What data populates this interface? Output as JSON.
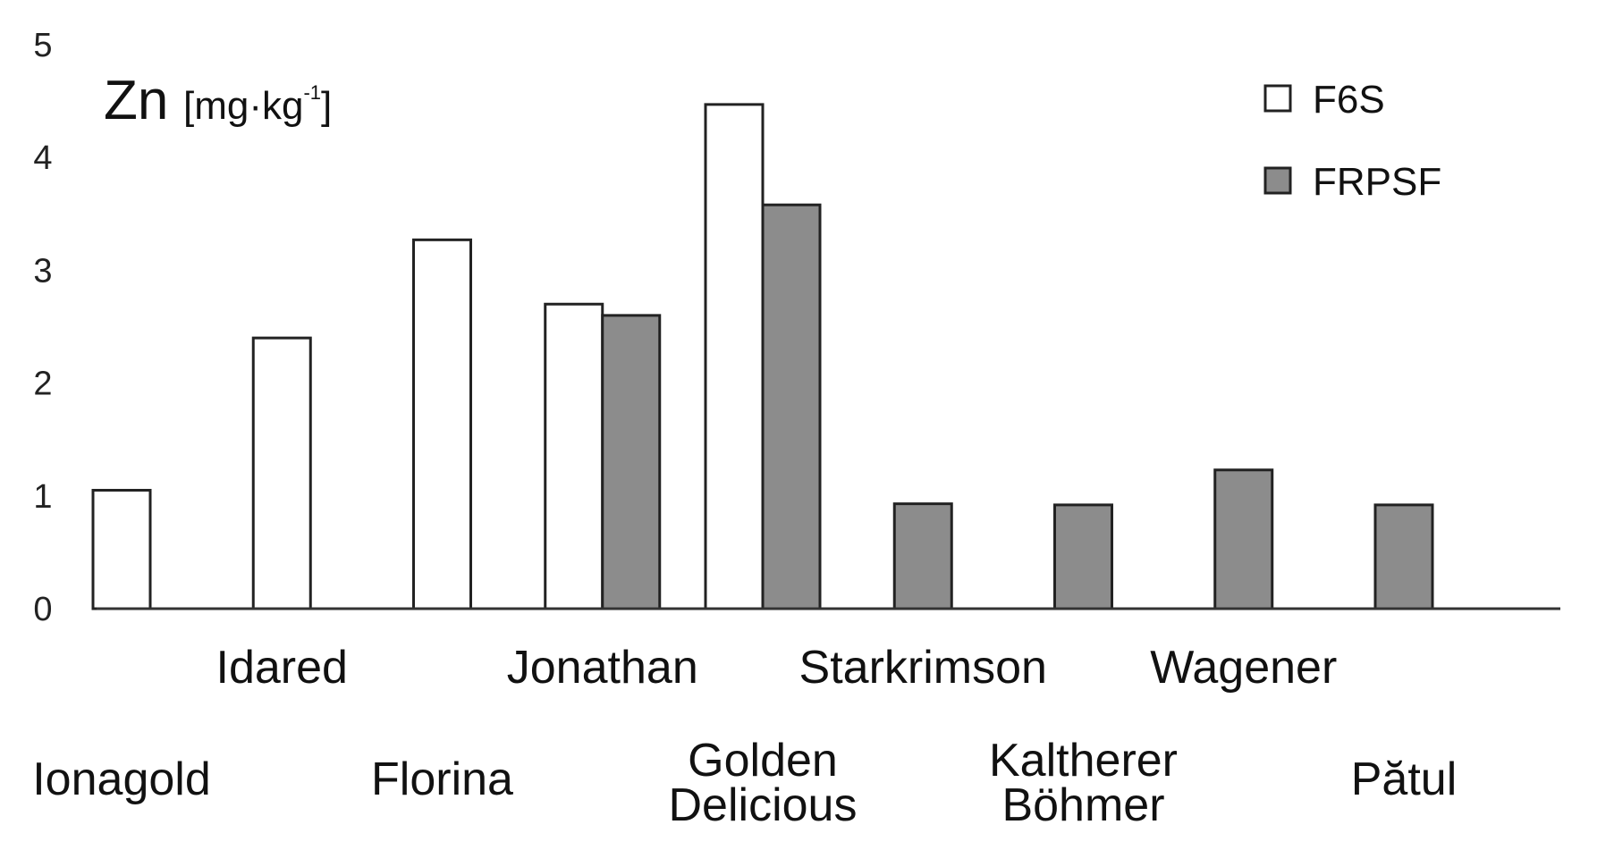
{
  "chart_data": {
    "type": "bar",
    "ylabel": {
      "symbol": "Zn",
      "unit_open": "[mg·kg",
      "unit_sup": "-1",
      "unit_close": "]"
    },
    "ylim": [
      0,
      5
    ],
    "yticks": [
      "0",
      "1",
      "2",
      "3",
      "4",
      "5"
    ],
    "grid": false,
    "legend_position": "top-right",
    "categories": [
      "Ionagold",
      "Idared",
      "Florina",
      "Jonathan",
      "Golden Delicious",
      "Starkrimson",
      "Kaltherer Böhmer",
      "Wagener",
      "Pătul"
    ],
    "category_label_lines": [
      [
        "Ionagold"
      ],
      [
        "Idared"
      ],
      [
        "Florina"
      ],
      [
        "Jonathan"
      ],
      [
        "Golden",
        "Delicious"
      ],
      [
        "Starkrimson"
      ],
      [
        "Kaltherer",
        "Böhmer"
      ],
      [
        "Wagener"
      ],
      [
        "Pătul"
      ]
    ],
    "series": [
      {
        "name": "F6S",
        "color": "#ffffff",
        "values": [
          1.05,
          2.4,
          3.27,
          2.7,
          4.47,
          null,
          null,
          null,
          null
        ]
      },
      {
        "name": "FRPSF",
        "color": "#8c8c8c",
        "values": [
          null,
          null,
          null,
          2.6,
          3.58,
          0.93,
          0.92,
          1.23,
          0.92
        ]
      }
    ],
    "bar_edge_color": "#222222"
  }
}
